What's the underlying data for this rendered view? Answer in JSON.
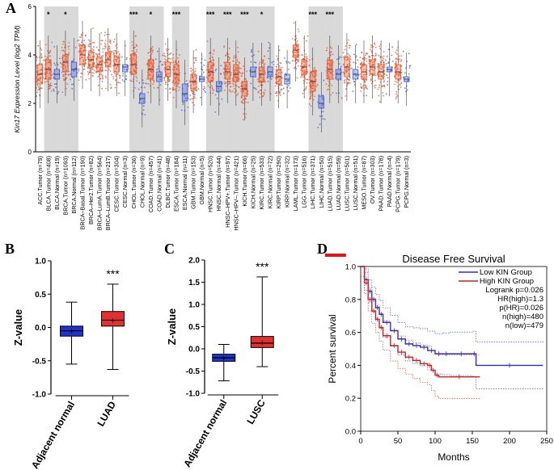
{
  "panels": {
    "a": "A",
    "b": "B",
    "c": "C",
    "d": "D"
  },
  "colors": {
    "tumor": "#e8542c",
    "normal": "#3b5bdb",
    "shade": "#d9d9d9",
    "underline": "#e0141e",
    "box_blue": "#2233cc",
    "box_red": "#e03030",
    "km_low": "#2b2fd1",
    "km_high": "#d41f1f"
  },
  "chart_data": [
    {
      "id": "A",
      "type": "box",
      "ylabel": "Kin17 Expression Level (log2 TPM)",
      "ylim": [
        0,
        6
      ],
      "yticks": [
        0,
        2,
        4,
        6
      ],
      "highlight": "LUAD.Tumor (n=515)",
      "categories": [
        {
          "label": "ACC.Tumor (n=79)",
          "group": "tumor",
          "median": 3.2,
          "q1": 2.8,
          "q3": 3.6,
          "shade": false,
          "sig": ""
        },
        {
          "label": "BLCA.Tumor (n=408)",
          "group": "tumor",
          "median": 3.4,
          "q1": 3.0,
          "q3": 3.8,
          "shade": true,
          "sig": "*"
        },
        {
          "label": "BLCA.Normal (n=19)",
          "group": "normal",
          "median": 3.2,
          "q1": 3.0,
          "q3": 3.4,
          "shade": true,
          "sig": ""
        },
        {
          "label": "BRCA.Tumor (n=1093)",
          "group": "tumor",
          "median": 3.7,
          "q1": 3.3,
          "q3": 4.0,
          "shade": true,
          "sig": "*"
        },
        {
          "label": "BRCA.Normal (n=112)",
          "group": "normal",
          "median": 3.4,
          "q1": 3.1,
          "q3": 3.7,
          "shade": true,
          "sig": ""
        },
        {
          "label": "BRCA–Basal.Tumor (n=190)",
          "group": "tumor",
          "median": 4.0,
          "q1": 3.6,
          "q3": 4.4,
          "shade": false,
          "sig": ""
        },
        {
          "label": "BRCA–Her2.Tumor (n=82)",
          "group": "tumor",
          "median": 3.8,
          "q1": 3.5,
          "q3": 4.1,
          "shade": false,
          "sig": ""
        },
        {
          "label": "BRCA–LumA.Tumor (n=564)",
          "group": "tumor",
          "median": 3.6,
          "q1": 3.3,
          "q3": 3.9,
          "shade": false,
          "sig": ""
        },
        {
          "label": "BRCA–LumB.Tumor (n=217)",
          "group": "tumor",
          "median": 3.8,
          "q1": 3.5,
          "q3": 4.1,
          "shade": false,
          "sig": ""
        },
        {
          "label": "CESC.Tumor (n=304)",
          "group": "tumor",
          "median": 3.6,
          "q1": 3.3,
          "q3": 3.9,
          "shade": false,
          "sig": ""
        },
        {
          "label": "CESC.Normal (n=3)",
          "group": "normal",
          "median": 3.5,
          "q1": 3.3,
          "q3": 3.6,
          "shade": false,
          "sig": ""
        },
        {
          "label": "CHOL.Tumor (n=36)",
          "group": "tumor",
          "median": 3.6,
          "q1": 3.2,
          "q3": 4.0,
          "shade": true,
          "sig": "***"
        },
        {
          "label": "CHOL.Normal (n=9)",
          "group": "normal",
          "median": 2.2,
          "q1": 2.0,
          "q3": 2.4,
          "shade": true,
          "sig": ""
        },
        {
          "label": "COAD.Tumor (n=457)",
          "group": "tumor",
          "median": 3.4,
          "q1": 3.0,
          "q3": 3.8,
          "shade": true,
          "sig": "*"
        },
        {
          "label": "COAD.Normal (n=41)",
          "group": "normal",
          "median": 3.1,
          "q1": 2.9,
          "q3": 3.3,
          "shade": true,
          "sig": ""
        },
        {
          "label": "DLBC.Tumor (n=48)",
          "group": "tumor",
          "median": 3.4,
          "q1": 3.1,
          "q3": 3.7,
          "shade": false,
          "sig": ""
        },
        {
          "label": "ESCA.Tumor (n=184)",
          "group": "tumor",
          "median": 3.2,
          "q1": 2.8,
          "q3": 3.6,
          "shade": true,
          "sig": "***"
        },
        {
          "label": "ESCA.Normal (n=11)",
          "group": "normal",
          "median": 2.4,
          "q1": 2.1,
          "q3": 2.8,
          "shade": true,
          "sig": ""
        },
        {
          "label": "GBM.Tumor (n=153)",
          "group": "tumor",
          "median": 2.9,
          "q1": 2.6,
          "q3": 3.2,
          "shade": false,
          "sig": ""
        },
        {
          "label": "GBM.Normal (n=5)",
          "group": "normal",
          "median": 3.0,
          "q1": 2.9,
          "q3": 3.1,
          "shade": false,
          "sig": ""
        },
        {
          "label": "HNSC.Tumor (n=520)",
          "group": "tumor",
          "median": 3.3,
          "q1": 2.9,
          "q3": 3.7,
          "shade": true,
          "sig": "***"
        },
        {
          "label": "HNSC.Normal (n=44)",
          "group": "normal",
          "median": 2.7,
          "q1": 2.5,
          "q3": 2.9,
          "shade": true,
          "sig": ""
        },
        {
          "label": "HNSC–HPV+.Tumor (n=97)",
          "group": "tumor",
          "median": 3.3,
          "q1": 3.0,
          "q3": 3.7,
          "shade": true,
          "sig": "***"
        },
        {
          "label": "HNSC–HPV–.Tumor (n=421)",
          "group": "tumor",
          "median": 3.2,
          "q1": 2.9,
          "q3": 3.6,
          "shade": true,
          "sig": ""
        },
        {
          "label": "KICH.Tumor (n=66)",
          "group": "tumor",
          "median": 2.6,
          "q1": 2.3,
          "q3": 2.9,
          "shade": true,
          "sig": "***"
        },
        {
          "label": "KICH.Normal (n=25)",
          "group": "normal",
          "median": 3.3,
          "q1": 3.1,
          "q3": 3.5,
          "shade": true,
          "sig": ""
        },
        {
          "label": "KIRC.Tumor (n=533)",
          "group": "tumor",
          "median": 3.2,
          "q1": 2.9,
          "q3": 3.5,
          "shade": true,
          "sig": "*"
        },
        {
          "label": "KIRC.Normal (n=72)",
          "group": "normal",
          "median": 3.3,
          "q1": 3.1,
          "q3": 3.5,
          "shade": true,
          "sig": ""
        },
        {
          "label": "KIRP.Tumor (n=290)",
          "group": "tumor",
          "median": 3.1,
          "q1": 2.8,
          "q3": 3.4,
          "shade": false,
          "sig": ""
        },
        {
          "label": "KIRP.Normal (n=32)",
          "group": "normal",
          "median": 3.0,
          "q1": 2.8,
          "q3": 3.2,
          "shade": false,
          "sig": ""
        },
        {
          "label": "LAML.Tumor (n=173)",
          "group": "tumor",
          "median": 4.2,
          "q1": 3.9,
          "q3": 4.4,
          "shade": false,
          "sig": ""
        },
        {
          "label": "LGG.Tumor (n=516)",
          "group": "tumor",
          "median": 3.5,
          "q1": 3.2,
          "q3": 3.8,
          "shade": false,
          "sig": ""
        },
        {
          "label": "LIHC.Tumor (n=371)",
          "group": "tumor",
          "median": 2.9,
          "q1": 2.5,
          "q3": 3.3,
          "shade": true,
          "sig": "***"
        },
        {
          "label": "LIHC.Normal (n=50)",
          "group": "normal",
          "median": 2.0,
          "q1": 1.8,
          "q3": 2.3,
          "shade": true,
          "sig": ""
        },
        {
          "label": "LUAD.Tumor (n=515)",
          "group": "tumor",
          "median": 3.4,
          "q1": 3.0,
          "q3": 3.8,
          "shade": true,
          "sig": "***"
        },
        {
          "label": "LUAD.Normal (n=59)",
          "group": "normal",
          "median": 3.2,
          "q1": 3.0,
          "q3": 3.4,
          "shade": true,
          "sig": ""
        },
        {
          "label": "LUSC.Tumor (n=501)",
          "group": "tumor",
          "median": 3.5,
          "q1": 3.1,
          "q3": 3.9,
          "shade": false,
          "sig": ""
        },
        {
          "label": "LUSC.Normal (n=51)",
          "group": "normal",
          "median": 3.2,
          "q1": 3.0,
          "q3": 3.4,
          "shade": false,
          "sig": ""
        },
        {
          "label": "MESO.Tumor (n=87)",
          "group": "tumor",
          "median": 3.3,
          "q1": 3.0,
          "q3": 3.6,
          "shade": false,
          "sig": ""
        },
        {
          "label": "OV.Tumor (n=303)",
          "group": "tumor",
          "median": 3.5,
          "q1": 3.2,
          "q3": 3.8,
          "shade": false,
          "sig": ""
        },
        {
          "label": "PAAD.Tumor (n=178)",
          "group": "tumor",
          "median": 3.3,
          "q1": 3.0,
          "q3": 3.6,
          "shade": false,
          "sig": ""
        },
        {
          "label": "PAAD.Normal (n=4)",
          "group": "normal",
          "median": 3.4,
          "q1": 3.3,
          "q3": 3.5,
          "shade": false,
          "sig": ""
        },
        {
          "label": "PCPG.Tumor (n=179)",
          "group": "tumor",
          "median": 3.3,
          "q1": 3.0,
          "q3": 3.6,
          "shade": false,
          "sig": ""
        },
        {
          "label": "PCPG.Normal (n=3)",
          "group": "normal",
          "median": 3.0,
          "q1": 2.9,
          "q3": 3.1,
          "shade": false,
          "sig": ""
        }
      ]
    },
    {
      "id": "B",
      "type": "box",
      "ylabel": "Z-value",
      "ylim": [
        -1.0,
        1.0
      ],
      "yticks": [
        -1.0,
        -0.5,
        0.0,
        0.5,
        1.0
      ],
      "significance": "***",
      "boxes": [
        {
          "label": "Adjacent normal",
          "min": -0.55,
          "q1": -0.13,
          "median": -0.05,
          "mean": -0.05,
          "q3": 0.02,
          "max": 0.38,
          "color": "blue"
        },
        {
          "label": "LUAD",
          "min": -0.63,
          "q1": 0.02,
          "median": 0.11,
          "mean": 0.11,
          "q3": 0.24,
          "max": 0.65,
          "color": "red"
        }
      ]
    },
    {
      "id": "C",
      "type": "box",
      "ylabel": "Z-value",
      "ylim": [
        -1.0,
        2.0
      ],
      "yticks": [
        -1.0,
        -0.5,
        0.0,
        0.5,
        1.0,
        1.5,
        2.0
      ],
      "significance": "***",
      "boxes": [
        {
          "label": "Adjacent normal",
          "min": -0.72,
          "q1": -0.28,
          "median": -0.2,
          "mean": -0.2,
          "q3": -0.12,
          "max": 0.1,
          "color": "blue"
        },
        {
          "label": "LUSC",
          "min": -0.4,
          "q1": 0.03,
          "median": 0.13,
          "mean": 0.15,
          "q3": 0.28,
          "max": 1.62,
          "color": "red"
        }
      ]
    },
    {
      "id": "D",
      "type": "line",
      "title": "Disease Free Survival",
      "xlabel": "Months",
      "ylabel": "Percent survival",
      "xlim": [
        0,
        250
      ],
      "ylim": [
        0,
        1.0
      ],
      "xticks": [
        0,
        50,
        100,
        150,
        200,
        250
      ],
      "yticks": [
        0.0,
        0.2,
        0.4,
        0.6,
        0.8,
        1.0
      ],
      "legend": [
        "Low KIN Group",
        "High KIN Group"
      ],
      "stats": [
        "Logrank p=0.026",
        "HR(high)=1.3",
        "p(HR)=0.026",
        "n(high)=480",
        "n(low)=479"
      ],
      "series": [
        {
          "name": "Low KIN Group",
          "x": [
            0,
            5,
            10,
            15,
            20,
            25,
            30,
            40,
            50,
            60,
            70,
            80,
            90,
            100,
            110,
            120,
            150,
            155,
            245
          ],
          "y": [
            1.0,
            0.92,
            0.85,
            0.8,
            0.75,
            0.71,
            0.66,
            0.61,
            0.56,
            0.53,
            0.52,
            0.51,
            0.49,
            0.47,
            0.47,
            0.47,
            0.47,
            0.4,
            0.4
          ]
        },
        {
          "name": "High KIN Group",
          "x": [
            0,
            5,
            10,
            15,
            20,
            25,
            30,
            40,
            50,
            60,
            70,
            80,
            90,
            95,
            100,
            105,
            160
          ],
          "y": [
            1.0,
            0.9,
            0.8,
            0.73,
            0.68,
            0.63,
            0.58,
            0.52,
            0.48,
            0.45,
            0.43,
            0.41,
            0.4,
            0.37,
            0.34,
            0.33,
            0.33
          ]
        }
      ]
    }
  ]
}
